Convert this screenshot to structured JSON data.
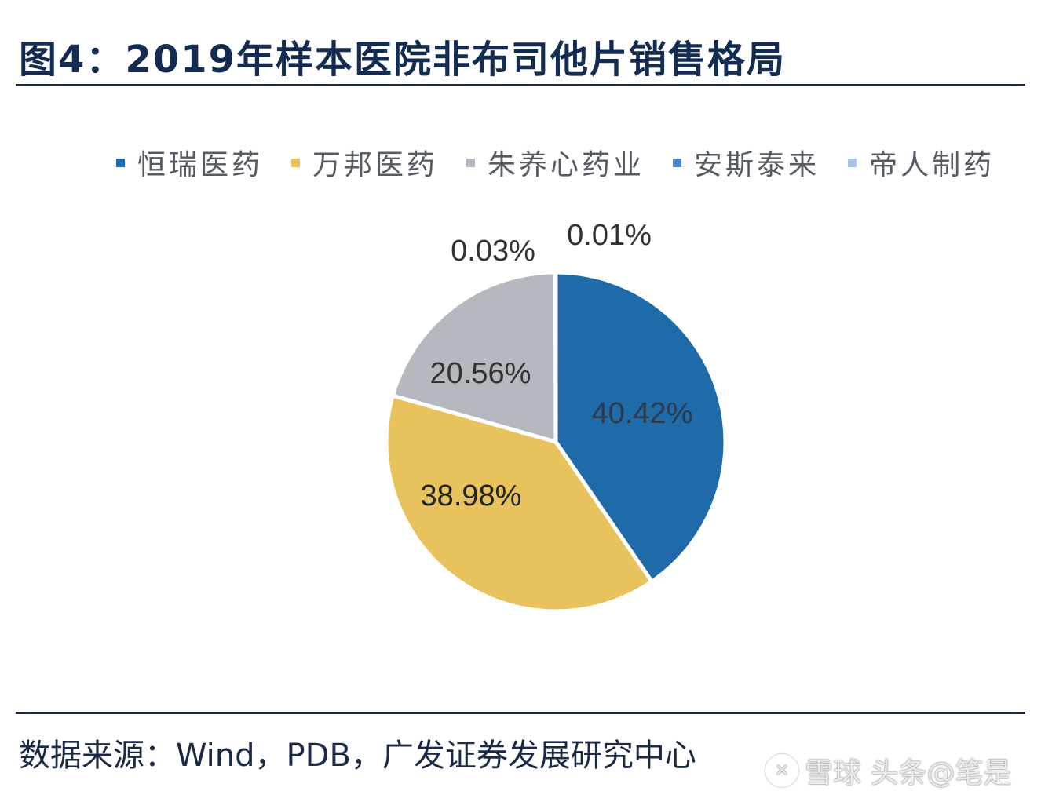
{
  "title": "图4：2019年样本医院非布司他片销售格局",
  "source": "数据来源：Wind，PDB，广发证券发展研究中心",
  "watermark": {
    "logo_icon": "xueqiu-logo-icon",
    "text": "雪球 头条@笔是"
  },
  "chart_data": {
    "type": "pie",
    "title": "",
    "legend_position": "top",
    "categories": [
      "恒瑞医药",
      "万邦医药",
      "朱养心药业",
      "安斯泰来",
      "帝人制药"
    ],
    "values": [
      40.42,
      38.98,
      20.56,
      0.03,
      0.01
    ],
    "labels": [
      "40.42%",
      "38.98%",
      "20.56%",
      "0.03%",
      "0.01%"
    ],
    "colors": [
      "#1f6aa9",
      "#e8c35d",
      "#b5b8be",
      "#4a86c5",
      "#a7c6e3"
    ],
    "label_colors": [
      "#2e3a4b",
      "#222222",
      "#333333",
      "#333333",
      "#333333"
    ]
  }
}
